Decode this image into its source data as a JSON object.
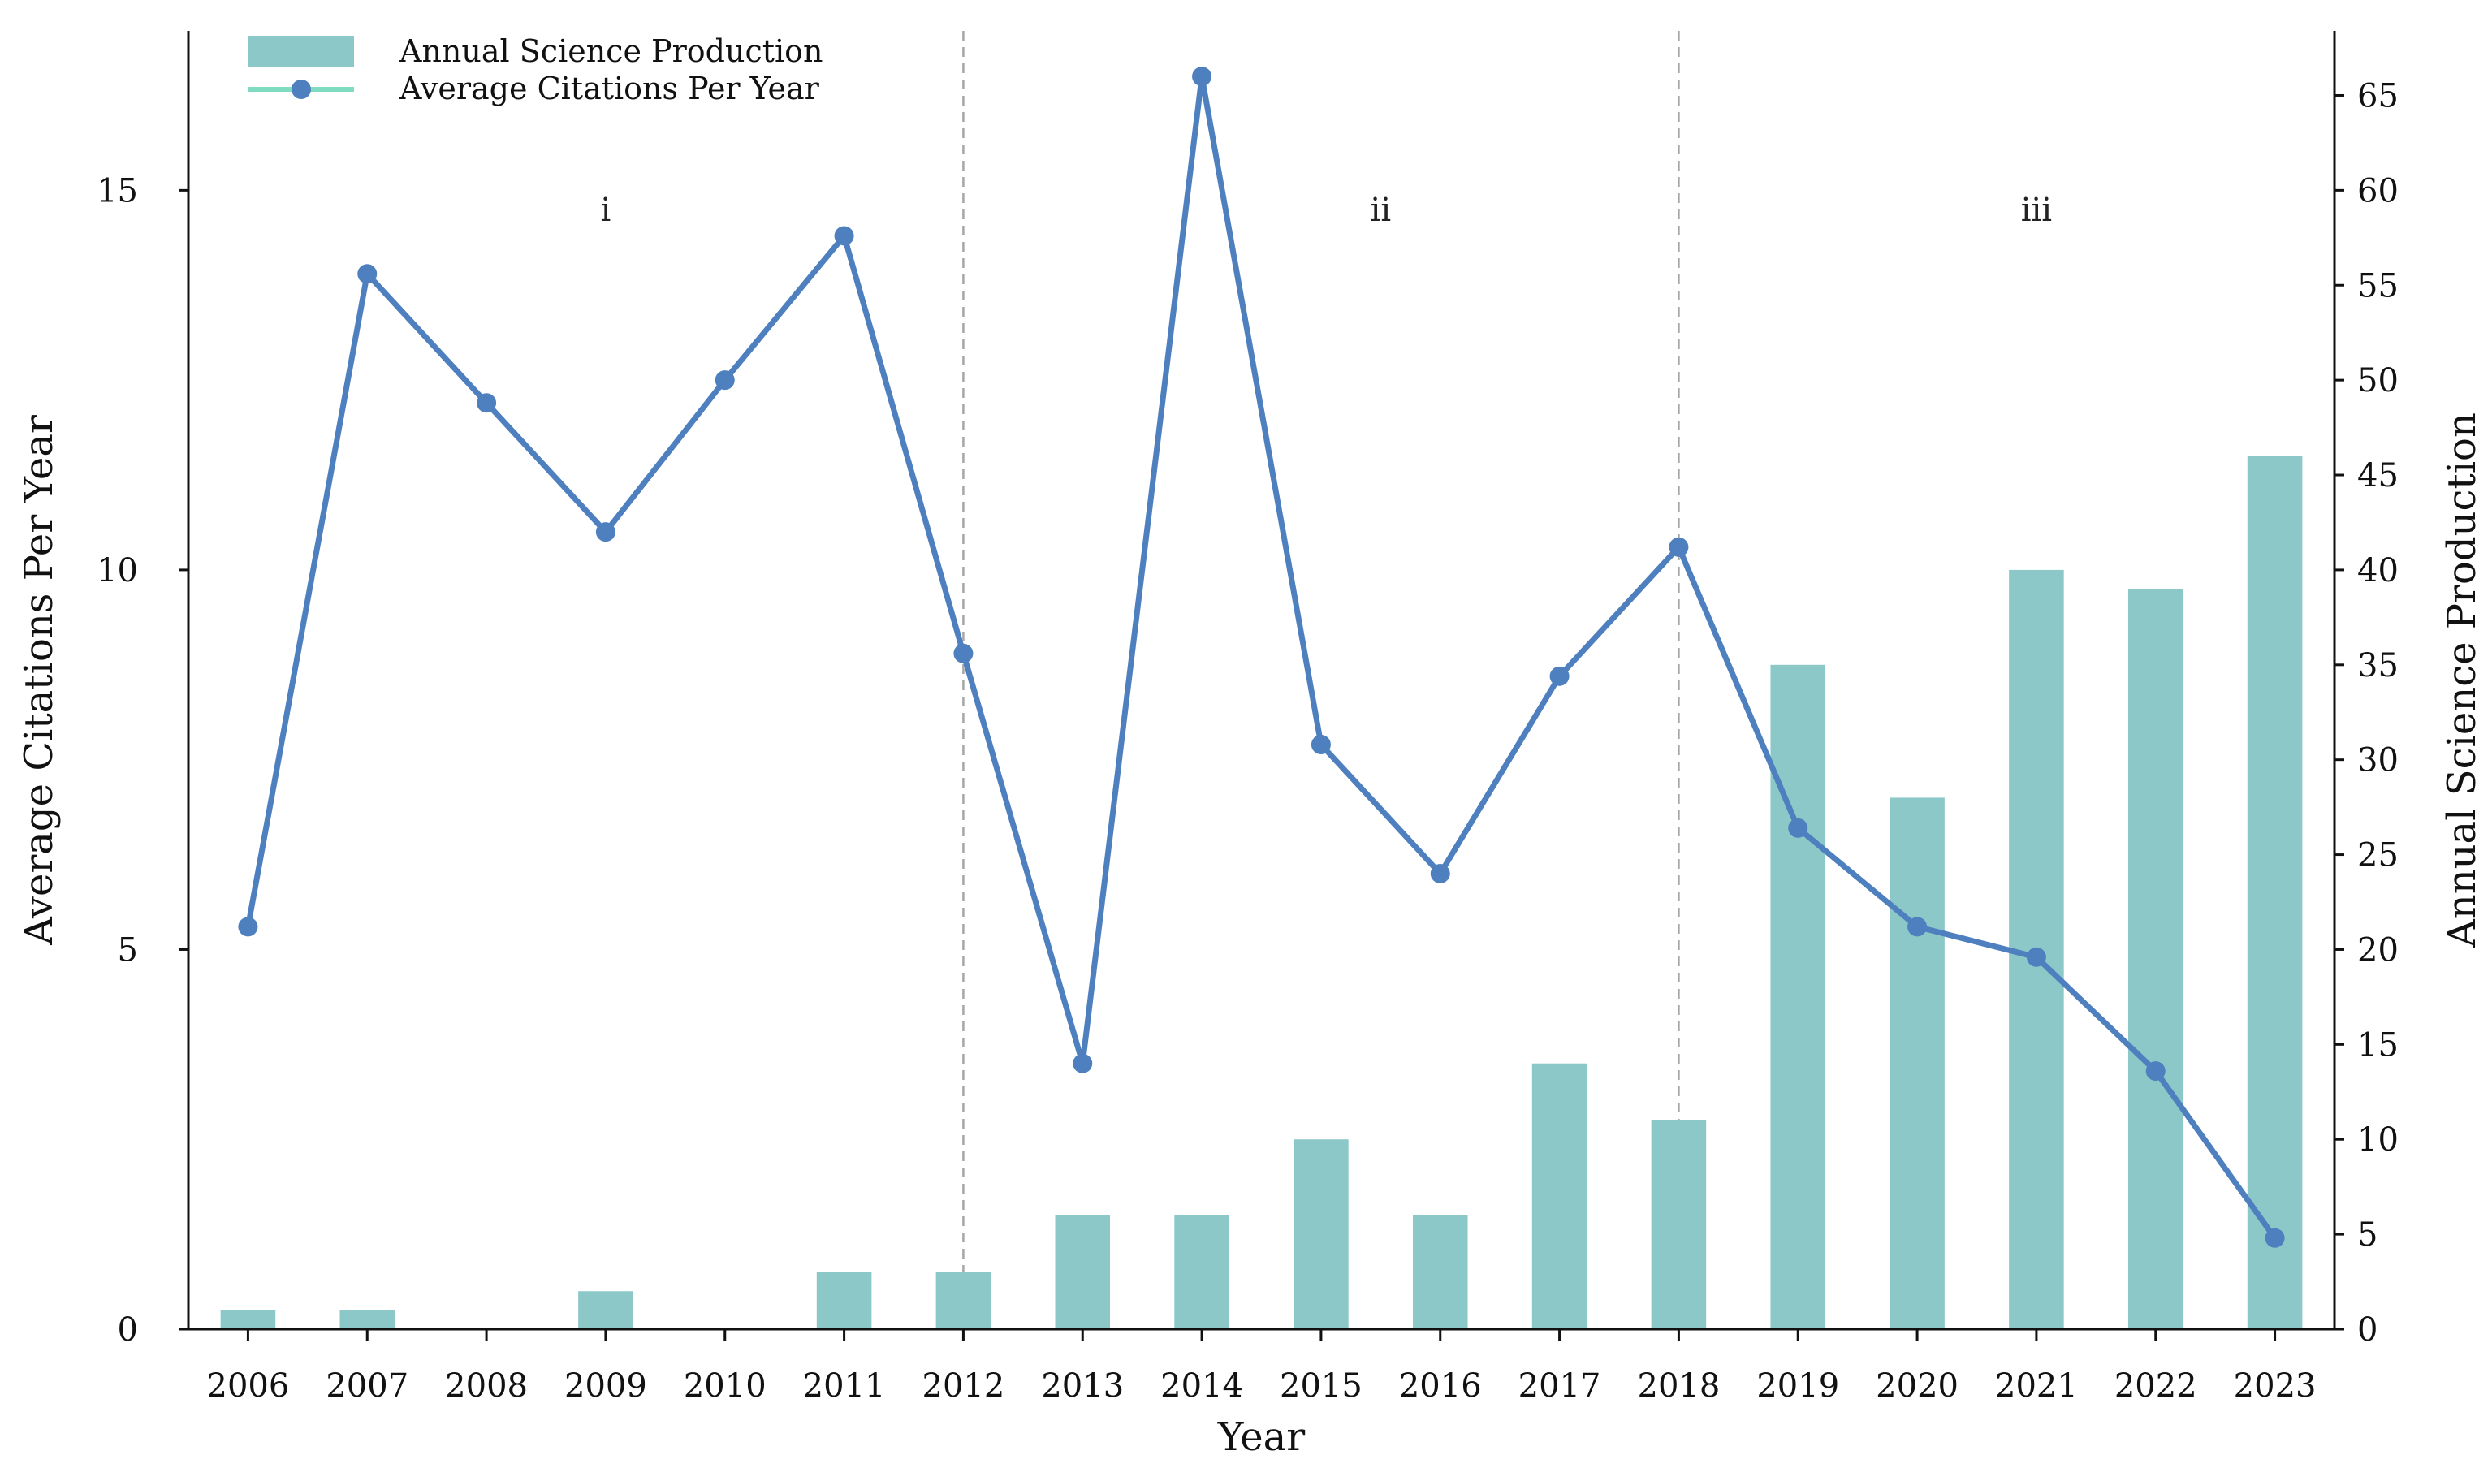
{
  "chart_data": {
    "type": "bar+line",
    "title": "",
    "xlabel": "Year",
    "ylabel_left": "Average Citations Per Year",
    "ylabel_right": "Annual Science Production",
    "categories": [
      "2006",
      "2007",
      "2008",
      "2009",
      "2010",
      "2011",
      "2012",
      "2013",
      "2014",
      "2015",
      "2016",
      "2017",
      "2018",
      "2019",
      "2020",
      "2021",
      "2022",
      "2023"
    ],
    "series": [
      {
        "name": "Annual Science Production",
        "kind": "bar",
        "axis": "right",
        "color": "#8cc8c8",
        "values": [
          1,
          1,
          0,
          2,
          0,
          3,
          3,
          6,
          6,
          10,
          6,
          14,
          11,
          35,
          28,
          40,
          39,
          46
        ]
      },
      {
        "name": "Average Citations Per Year",
        "kind": "line",
        "axis": "left",
        "color": "#4e7fbe",
        "legend_line_color": "#7fdcc0",
        "values": [
          5.3,
          13.9,
          12.2,
          10.5,
          12.5,
          14.4,
          8.9,
          3.5,
          16.5,
          7.7,
          6.0,
          8.6,
          10.3,
          6.6,
          5.3,
          4.9,
          3.4,
          1.2
        ]
      }
    ],
    "ylim_left": [
      0,
      17.1
    ],
    "yticks_left": [
      0,
      5,
      10,
      15
    ],
    "ylim_right": [
      0,
      68.4
    ],
    "yticks_right": [
      0,
      5,
      10,
      15,
      20,
      25,
      30,
      35,
      40,
      45,
      50,
      55,
      60,
      65
    ],
    "phase_dividers": [
      "2012",
      "2018"
    ],
    "phases": [
      {
        "label": "i",
        "center": "2009"
      },
      {
        "label": "ii",
        "center": "2015.5"
      },
      {
        "label": "iii",
        "center": "2021"
      }
    ],
    "grid": false,
    "legend_position": "top-left"
  }
}
